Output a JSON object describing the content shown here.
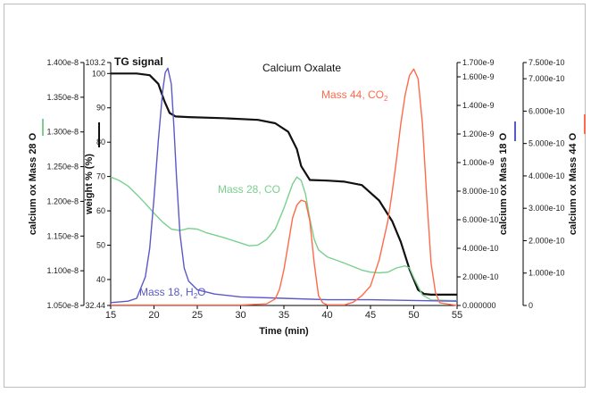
{
  "chart_data": {
    "type": "line",
    "title": "Calcium Oxalate",
    "corner_label": "TG signal",
    "xlabel": "Time (min)",
    "xlim": [
      15,
      55
    ],
    "x_ticks": [
      "15",
      "20",
      "25",
      "30",
      "35",
      "40",
      "45",
      "50",
      "55"
    ],
    "colors": {
      "tg": "#111111",
      "m28": "#79d08f",
      "m18": "#5a59c8",
      "m44": "#ff6a4a"
    },
    "axes": {
      "m28": {
        "label": "calcium ox Mass 28 O",
        "ylim": [
          1.05e-08,
          1.4e-08
        ],
        "ticks": [
          "1.050e-8",
          "1.100e-8",
          "1.150e-8",
          "1.200e-8",
          "1.250e-8",
          "1.300e-8",
          "1.350e-8",
          "1.400e-8"
        ]
      },
      "weight": {
        "label": "weight % (%)",
        "ylim": [
          32.44,
          103.2
        ],
        "ticks": [
          "32.44",
          "40",
          "50",
          "60",
          "70",
          "80",
          "90",
          "100",
          "103.2"
        ]
      },
      "m18": {
        "label": "calcium ox Mass 18 O",
        "ylim": [
          0,
          1.7e-09
        ],
        "ticks": [
          "0.000000",
          "2.000e-10",
          "4.000e-10",
          "6.000e-10",
          "8.000e-10",
          "1.000e-9",
          "1.200e-9",
          "1.400e-9",
          "1.600e-9",
          "1.700e-9"
        ]
      },
      "m44": {
        "label": "calcium ox Mass 44 O",
        "ylim": [
          0,
          7.5e-10
        ],
        "ticks": [
          "0",
          "1.000e-10",
          "2.000e-10",
          "3.000e-10",
          "4.000e-10",
          "5.000e-10",
          "6.000e-10",
          "7.000e-10",
          "7.500e-10"
        ]
      }
    },
    "annotations": [
      {
        "text": "Mass 28, CO",
        "series": "m28"
      },
      {
        "text": "Mass 18, H",
        "sub": "2",
        "tail": "O",
        "series": "m18"
      },
      {
        "text": "Mass 44, CO",
        "sub": "2",
        "tail": "",
        "series": "m44"
      }
    ],
    "series": [
      {
        "key": "tg",
        "axis": "weight",
        "x": [
          15,
          18,
          19.5,
          20.5,
          21.2,
          21.8,
          22.5,
          24,
          28,
          32,
          34,
          35.5,
          36.5,
          37,
          38,
          40,
          42,
          44,
          46,
          47.5,
          48.5,
          49.5,
          50.5,
          51.2,
          52,
          55
        ],
        "y": [
          100,
          100,
          99.5,
          97,
          92,
          88.5,
          87.5,
          87.3,
          87,
          86.5,
          85.5,
          83,
          78,
          73,
          69,
          68.8,
          68.5,
          67.5,
          63,
          57,
          51,
          43,
          37,
          35.8,
          35.6,
          35.6
        ]
      },
      {
        "key": "m28",
        "axis": "m28",
        "x": [
          15,
          16,
          17,
          18,
          19,
          20,
          21,
          22,
          23,
          24,
          25,
          26,
          28,
          30,
          31,
          32,
          33,
          34,
          35,
          36,
          36.5,
          37,
          37.5,
          38,
          38.5,
          39,
          40,
          42,
          44,
          45,
          46,
          47,
          48,
          49,
          49.5,
          50,
          51,
          52,
          55
        ],
        "y": [
          1.235e-08,
          1.23e-08,
          1.222e-08,
          1.21e-08,
          1.197e-08,
          1.183e-08,
          1.17e-08,
          1.16e-08,
          1.158e-08,
          1.161e-08,
          1.16e-08,
          1.155e-08,
          1.148e-08,
          1.14e-08,
          1.136e-08,
          1.137e-08,
          1.145e-08,
          1.16e-08,
          1.19e-08,
          1.225e-08,
          1.235e-08,
          1.23e-08,
          1.21e-08,
          1.175e-08,
          1.145e-08,
          1.13e-08,
          1.12e-08,
          1.111e-08,
          1.101e-08,
          1.098e-08,
          1.097e-08,
          1.098e-08,
          1.104e-08,
          1.107e-08,
          1.104e-08,
          1.09e-08,
          1.065e-08,
          1.058e-08,
          1.057e-08
        ]
      },
      {
        "key": "m18",
        "axis": "m18",
        "x": [
          15,
          17,
          18,
          19,
          19.5,
          20,
          20.5,
          21,
          21.3,
          21.6,
          22,
          22.3,
          22.6,
          23,
          23.5,
          24,
          25,
          27,
          30,
          35,
          40,
          45,
          50,
          55
        ],
        "y": [
          2e-11,
          3e-11,
          5e-11,
          2e-10,
          4e-10,
          7.5e-10,
          1.15e-09,
          1.5e-09,
          1.63e-09,
          1.66e-09,
          1.55e-09,
          1.25e-09,
          9e-10,
          5e-10,
          2.6e-10,
          1.7e-10,
          1.1e-10,
          8e-11,
          6e-11,
          5e-11,
          4e-11,
          4e-11,
          3.5e-11,
          3e-11
        ]
      },
      {
        "key": "m44",
        "axis": "m44",
        "x": [
          15,
          30,
          33,
          34,
          34.5,
          35,
          35.5,
          36,
          36.5,
          37,
          37.5,
          38,
          38.5,
          39,
          39.5,
          40,
          42,
          43,
          44,
          45,
          46,
          47,
          47.5,
          48,
          48.5,
          49,
          49.5,
          50,
          50.5,
          51,
          51.5,
          52,
          52.5,
          53,
          55
        ],
        "y": [
          1e-12,
          1e-12,
          5e-12,
          2e-11,
          5e-11,
          1.1e-10,
          1.9e-10,
          2.7e-10,
          3.1e-10,
          3.25e-10,
          3.2e-10,
          2.6e-10,
          1.3e-10,
          3e-11,
          8e-12,
          2e-12,
          2e-12,
          1e-11,
          3e-11,
          6e-11,
          1.4e-10,
          2.6e-10,
          3.5e-10,
          4.5e-10,
          5.6e-10,
          6.5e-10,
          7.1e-10,
          7.3e-10,
          7e-10,
          5.6e-10,
          3.3e-10,
          1.3e-10,
          4e-11,
          8e-12,
          0
        ]
      }
    ]
  }
}
